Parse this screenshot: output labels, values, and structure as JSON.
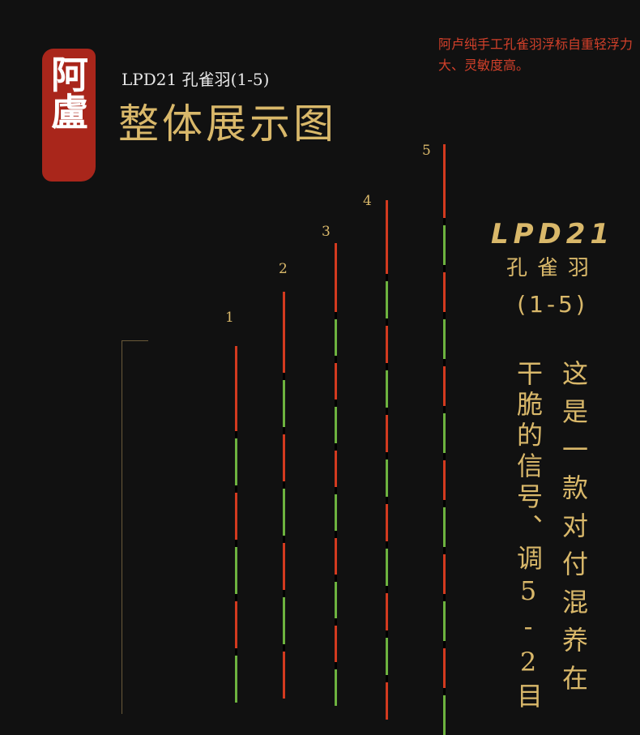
{
  "brand": {
    "seal_text": "阿盧"
  },
  "header": {
    "subtitle": "LPD21 孔雀羽(1-5)",
    "title": "整体展示图"
  },
  "note": "阿卢纯手工孔雀羽浮标自重轻浮力大、灵敏度高。",
  "floats": [
    {
      "label": "1"
    },
    {
      "label": "2"
    },
    {
      "label": "3"
    },
    {
      "label": "4"
    },
    {
      "label": "5"
    }
  ],
  "side": {
    "code": "LPD21",
    "name": "孔雀羽",
    "range": "(1-5)",
    "description_col1": "这是一款对付混养在",
    "description_col2": "干脆的信号、调5-2目"
  },
  "colors": {
    "red": "#d33a1f",
    "green": "#6db33f",
    "gold": "#d9b86a",
    "background": "#111111"
  }
}
